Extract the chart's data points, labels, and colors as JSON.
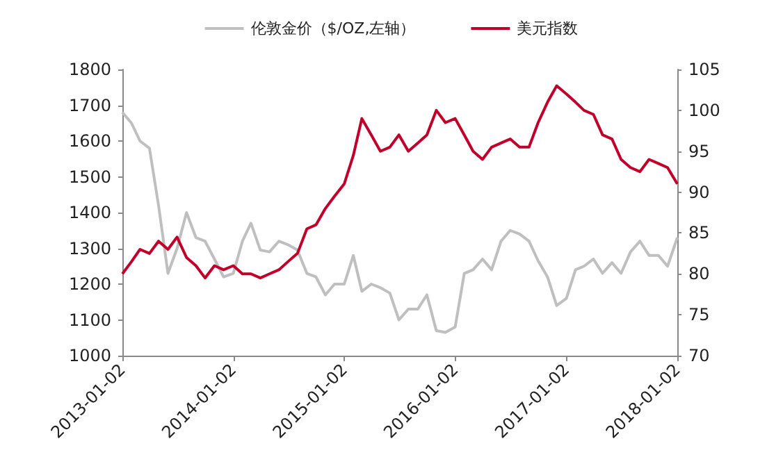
{
  "chart_data": {
    "type": "line",
    "legend": "top",
    "xlim": [
      "2013-01-02",
      "2018-01-02"
    ],
    "xticks": [
      "2013-01-02",
      "2014-01-02",
      "2015-01-02",
      "2016-01-02",
      "2017-01-02",
      "2018-01-02"
    ],
    "ylim": [
      1000,
      1800
    ],
    "yticks": [
      1000,
      1100,
      1200,
      1300,
      1400,
      1500,
      1600,
      1700,
      1800
    ],
    "y2lim": [
      70,
      105
    ],
    "y2ticks": [
      70,
      75,
      80,
      85,
      90,
      95,
      100,
      105
    ],
    "x": [
      "2013-01-02",
      "2013-02-01",
      "2013-03-01",
      "2013-04-01",
      "2013-05-01",
      "2013-06-01",
      "2013-07-01",
      "2013-08-01",
      "2013-09-01",
      "2013-10-01",
      "2013-11-01",
      "2013-12-01",
      "2014-01-02",
      "2014-02-01",
      "2014-03-01",
      "2014-04-01",
      "2014-05-01",
      "2014-06-01",
      "2014-07-01",
      "2014-08-01",
      "2014-09-01",
      "2014-10-01",
      "2014-11-01",
      "2014-12-01",
      "2015-01-02",
      "2015-02-01",
      "2015-03-01",
      "2015-04-01",
      "2015-05-01",
      "2015-06-01",
      "2015-07-01",
      "2015-08-01",
      "2015-09-01",
      "2015-10-01",
      "2015-11-01",
      "2015-12-01",
      "2016-01-02",
      "2016-02-01",
      "2016-03-01",
      "2016-04-01",
      "2016-05-01",
      "2016-06-01",
      "2016-07-01",
      "2016-08-01",
      "2016-09-01",
      "2016-10-01",
      "2016-11-01",
      "2016-12-01",
      "2017-01-02",
      "2017-02-01",
      "2017-03-01",
      "2017-04-01",
      "2017-05-01",
      "2017-06-01",
      "2017-07-01",
      "2017-08-01",
      "2017-09-01",
      "2017-10-01",
      "2017-11-01",
      "2017-12-01",
      "2018-01-02"
    ],
    "series": [
      {
        "name": "伦敦金价（$/OZ,左轴）",
        "color": "#bfbfbf",
        "values": [
          1680,
          1650,
          1600,
          1580,
          1420,
          1230,
          1300,
          1400,
          1330,
          1320,
          1270,
          1220,
          1230,
          1320,
          1370,
          1295,
          1290,
          1320,
          1310,
          1295,
          1230,
          1220,
          1170,
          1200,
          1200,
          1280,
          1180,
          1200,
          1190,
          1175,
          1100,
          1130,
          1130,
          1170,
          1070,
          1065,
          1080,
          1230,
          1240,
          1270,
          1240,
          1320,
          1350,
          1340,
          1320,
          1265,
          1220,
          1140,
          1160,
          1240,
          1250,
          1270,
          1230,
          1260,
          1230,
          1290,
          1320,
          1280,
          1280,
          1250,
          1330
        ]
      },
      {
        "name": "美元指数",
        "color": "#c0002a",
        "axis": "y2",
        "values": [
          80,
          81.5,
          83,
          82.5,
          84,
          83,
          84.5,
          82,
          81,
          79.5,
          81,
          80.5,
          81,
          80,
          80,
          79.5,
          80,
          80.5,
          81.5,
          82.5,
          85.5,
          86,
          88,
          89.5,
          91,
          94.5,
          99,
          97,
          95,
          95.5,
          97,
          95,
          96,
          97,
          100,
          98.5,
          99,
          97,
          95,
          94,
          95.5,
          96,
          96.5,
          95.5,
          95.5,
          98.5,
          101,
          103,
          102,
          101,
          100,
          99.5,
          97,
          96.5,
          94,
          93,
          92.5,
          94,
          93.5,
          93,
          91
        ]
      }
    ]
  }
}
